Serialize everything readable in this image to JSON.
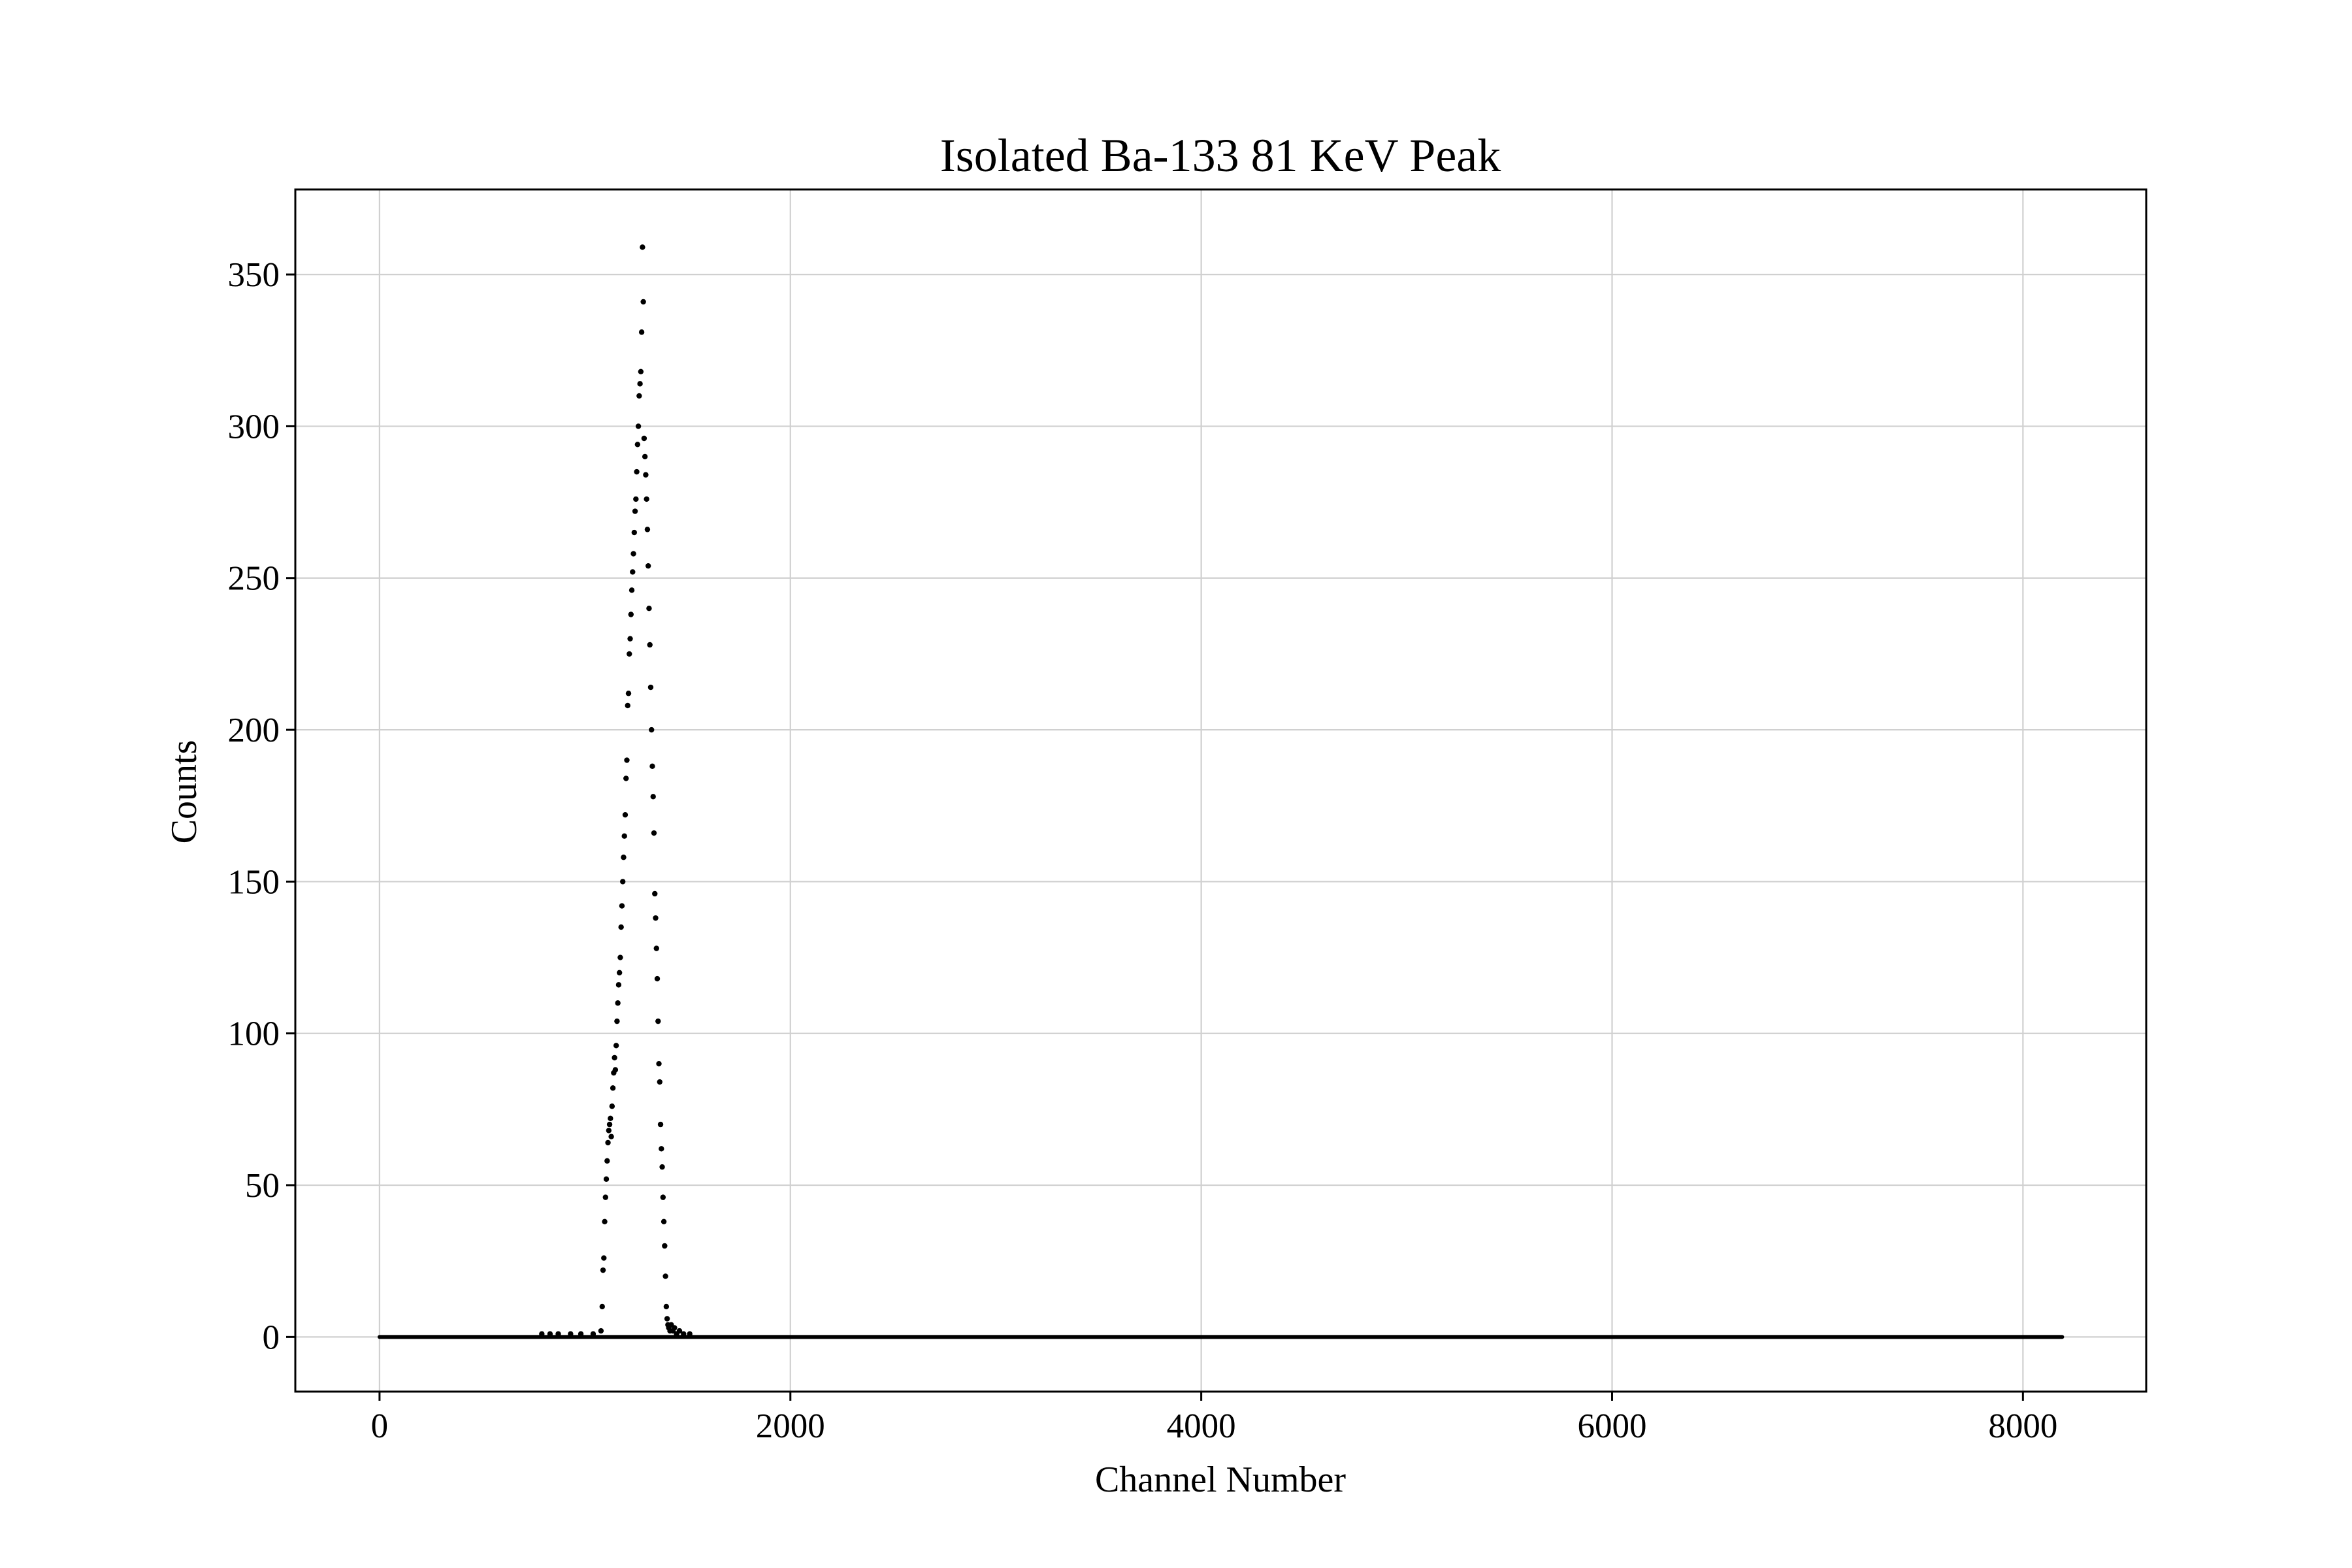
{
  "chart_data": {
    "type": "scatter",
    "title": "Isolated Ba-133 81 KeV Peak",
    "xlabel": "Channel Number",
    "ylabel": "Counts",
    "xlim": [
      -410,
      8600
    ],
    "ylim": [
      -18,
      378
    ],
    "xticks": [
      0,
      2000,
      4000,
      6000,
      8000
    ],
    "yticks": [
      0,
      50,
      100,
      150,
      200,
      250,
      300,
      350
    ],
    "grid": true,
    "marker_color": "#000000",
    "baseline": {
      "y": 0,
      "x_range": [
        0,
        8191
      ]
    },
    "points": [
      [
        790,
        1
      ],
      [
        830,
        1
      ],
      [
        870,
        1
      ],
      [
        930,
        1
      ],
      [
        980,
        1
      ],
      [
        1040,
        1
      ],
      [
        1078,
        2
      ],
      [
        1084,
        10
      ],
      [
        1088,
        22
      ],
      [
        1092,
        26
      ],
      [
        1096,
        38
      ],
      [
        1100,
        46
      ],
      [
        1104,
        52
      ],
      [
        1108,
        58
      ],
      [
        1112,
        64
      ],
      [
        1116,
        68
      ],
      [
        1120,
        70
      ],
      [
        1124,
        72
      ],
      [
        1128,
        66
      ],
      [
        1132,
        76
      ],
      [
        1136,
        82
      ],
      [
        1140,
        87
      ],
      [
        1144,
        92
      ],
      [
        1148,
        88
      ],
      [
        1152,
        96
      ],
      [
        1156,
        104
      ],
      [
        1160,
        110
      ],
      [
        1164,
        116
      ],
      [
        1168,
        120
      ],
      [
        1172,
        125
      ],
      [
        1176,
        135
      ],
      [
        1180,
        142
      ],
      [
        1184,
        150
      ],
      [
        1188,
        158
      ],
      [
        1192,
        165
      ],
      [
        1196,
        172
      ],
      [
        1200,
        184
      ],
      [
        1204,
        190
      ],
      [
        1208,
        208
      ],
      [
        1212,
        212
      ],
      [
        1216,
        225
      ],
      [
        1220,
        230
      ],
      [
        1224,
        238
      ],
      [
        1228,
        246
      ],
      [
        1232,
        252
      ],
      [
        1236,
        258
      ],
      [
        1240,
        265
      ],
      [
        1244,
        272
      ],
      [
        1248,
        276
      ],
      [
        1252,
        285
      ],
      [
        1256,
        294
      ],
      [
        1260,
        300
      ],
      [
        1264,
        310
      ],
      [
        1268,
        314
      ],
      [
        1272,
        318
      ],
      [
        1276,
        331
      ],
      [
        1280,
        359
      ],
      [
        1284,
        341
      ],
      [
        1288,
        296
      ],
      [
        1292,
        290
      ],
      [
        1296,
        284
      ],
      [
        1300,
        276
      ],
      [
        1304,
        266
      ],
      [
        1308,
        254
      ],
      [
        1312,
        240
      ],
      [
        1316,
        228
      ],
      [
        1320,
        214
      ],
      [
        1324,
        200
      ],
      [
        1328,
        188
      ],
      [
        1332,
        178
      ],
      [
        1336,
        166
      ],
      [
        1340,
        146
      ],
      [
        1344,
        138
      ],
      [
        1348,
        128
      ],
      [
        1352,
        118
      ],
      [
        1356,
        104
      ],
      [
        1360,
        90
      ],
      [
        1364,
        84
      ],
      [
        1368,
        70
      ],
      [
        1372,
        62
      ],
      [
        1376,
        56
      ],
      [
        1380,
        46
      ],
      [
        1384,
        38
      ],
      [
        1388,
        30
      ],
      [
        1392,
        20
      ],
      [
        1396,
        10
      ],
      [
        1400,
        6
      ],
      [
        1404,
        4
      ],
      [
        1408,
        3
      ],
      [
        1414,
        2
      ],
      [
        1420,
        4
      ],
      [
        1428,
        2
      ],
      [
        1436,
        3
      ],
      [
        1446,
        1
      ],
      [
        1460,
        2
      ],
      [
        1480,
        1
      ],
      [
        1510,
        1
      ]
    ]
  }
}
